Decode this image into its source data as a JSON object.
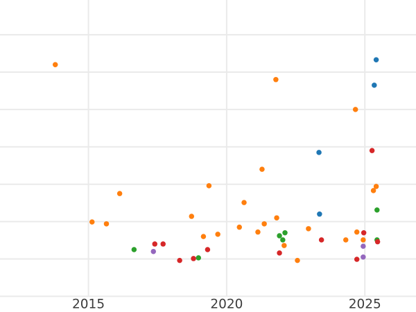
{
  "colors": {
    "background": "#ffffff",
    "gridline": "#eaeaea",
    "tick_label": "#3b3b3b",
    "series_blue": "#1f77b4",
    "series_orange": "#ff7f0e",
    "series_green": "#2ca02c",
    "series_red": "#d62728",
    "series_purple": "#9467bd"
  },
  "chart_data": {
    "type": "scatter",
    "title": "",
    "xlabel": "",
    "ylabel": "",
    "grid": true,
    "legend": "none",
    "marker_size_px": 7.5,
    "x_axis": {
      "tick_values": [
        2015,
        2020,
        2025
      ],
      "tick_labels": [
        "2015",
        "2020",
        "2025"
      ],
      "range": [
        2011.8,
        2026.85
      ]
    },
    "y_axis": {
      "tick_labels_visible": false,
      "unit": "gridline-units (y tick labels cropped out of view; values estimated from unlabeled gridlines, 1 unit per gridline above bottom line)",
      "range": [
        -0.42,
        7.93
      ],
      "gridline_values": [
        0,
        1,
        2,
        3,
        4,
        5,
        6,
        7
      ]
    },
    "series": [
      {
        "name": "blue",
        "color": "#1f77b4",
        "points": [
          [
            2025.41,
            6.33
          ],
          [
            2025.34,
            5.65
          ],
          [
            2023.34,
            3.85
          ],
          [
            2023.36,
            2.2
          ]
        ]
      },
      {
        "name": "orange",
        "color": "#ff7f0e",
        "points": [
          [
            2013.8,
            6.2
          ],
          [
            2021.78,
            5.8
          ],
          [
            2024.66,
            5.0
          ],
          [
            2021.28,
            3.4
          ],
          [
            2019.36,
            2.96
          ],
          [
            2025.41,
            2.94
          ],
          [
            2025.31,
            2.83
          ],
          [
            2016.13,
            2.75
          ],
          [
            2020.63,
            2.51
          ],
          [
            2018.73,
            2.14
          ],
          [
            2021.81,
            2.1
          ],
          [
            2015.13,
            1.99
          ],
          [
            2015.65,
            1.94
          ],
          [
            2021.36,
            1.94
          ],
          [
            2020.46,
            1.85
          ],
          [
            2022.96,
            1.81
          ],
          [
            2021.13,
            1.72
          ],
          [
            2024.71,
            1.72
          ],
          [
            2019.68,
            1.66
          ],
          [
            2019.16,
            1.6
          ],
          [
            2024.31,
            1.51
          ],
          [
            2024.94,
            1.51
          ],
          [
            2022.08,
            1.36
          ],
          [
            2022.56,
            0.96
          ]
        ]
      },
      {
        "name": "green",
        "color": "#2ca02c",
        "points": [
          [
            2025.44,
            2.31
          ],
          [
            2022.11,
            1.7
          ],
          [
            2021.91,
            1.62
          ],
          [
            2022.03,
            1.51
          ],
          [
            2025.44,
            1.51
          ],
          [
            2016.65,
            1.25
          ],
          [
            2018.98,
            1.03
          ]
        ]
      },
      {
        "name": "red",
        "color": "#d62728",
        "points": [
          [
            2025.26,
            3.9
          ],
          [
            2024.96,
            1.7
          ],
          [
            2023.43,
            1.51
          ],
          [
            2025.46,
            1.46
          ],
          [
            2017.4,
            1.4
          ],
          [
            2017.7,
            1.4
          ],
          [
            2019.31,
            1.25
          ],
          [
            2021.91,
            1.16
          ],
          [
            2018.8,
            1.01
          ],
          [
            2024.71,
            0.99
          ],
          [
            2018.3,
            0.96
          ]
        ]
      },
      {
        "name": "purple",
        "color": "#9467bd",
        "points": [
          [
            2024.94,
            1.34
          ],
          [
            2017.35,
            1.2
          ],
          [
            2024.94,
            1.05
          ]
        ]
      }
    ]
  }
}
